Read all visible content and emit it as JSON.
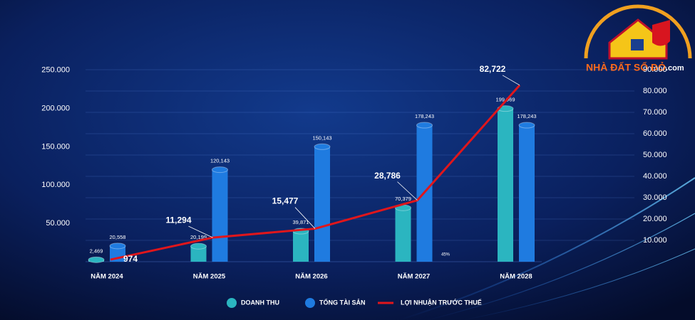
{
  "chart_data": {
    "type": "bar",
    "categories": [
      "NĂM 2024",
      "NĂM 2025",
      "NĂM 2026",
      "NĂM 2027",
      "NĂM 2028"
    ],
    "series": [
      {
        "name": "DOANH THU",
        "color": "#2bb5c0",
        "values": [
          2469,
          20199,
          39871,
          70379,
          199969
        ],
        "value_labels": [
          "2,469",
          "20,199",
          "39,871",
          "70,379",
          "199,969"
        ]
      },
      {
        "name": "TỔNG TÀI SẢN",
        "color": "#1f7be0",
        "values": [
          20558,
          120143,
          150143,
          178243,
          178243
        ],
        "value_labels": [
          "20,558",
          "120,143",
          "150,143",
          "178,243",
          "178,243"
        ]
      },
      {
        "name": "LỢI NHUẬN TRƯỚC THUẾ",
        "color": "#e0161b",
        "type": "line",
        "axis": "y2",
        "values": [
          974,
          11294,
          15477,
          28786,
          82722
        ],
        "value_labels": [
          "974",
          "11,294",
          "15,477",
          "28,786",
          "82,722"
        ]
      }
    ],
    "ylim": [
      0,
      260000
    ],
    "yticks": [
      {
        "value": 50000,
        "label": "50.000"
      },
      {
        "value": 100000,
        "label": "100.000"
      },
      {
        "value": 150000,
        "label": "150.000"
      },
      {
        "value": 200000,
        "label": "200.000"
      },
      {
        "value": 250000,
        "label": "250.000"
      }
    ],
    "y2lim": [
      0,
      90000
    ],
    "y2ticks": [
      {
        "value": 10000,
        "label": "10.000"
      },
      {
        "value": 20000,
        "label": "20.000"
      },
      {
        "value": 30000,
        "label": "30.000"
      },
      {
        "value": 40000,
        "label": "40.000"
      },
      {
        "value": 50000,
        "label": "50.000"
      },
      {
        "value": 60000,
        "label": "60.000"
      },
      {
        "value": 70000,
        "label": "70.000"
      },
      {
        "value": 80000,
        "label": "80.000"
      },
      {
        "value": 90000,
        "label": "90.000"
      }
    ],
    "grid": true,
    "annotation": "45%"
  },
  "logo": {
    "name": "NHÀ ĐẤT SỔ ĐỎ",
    "suffix": ".com"
  }
}
